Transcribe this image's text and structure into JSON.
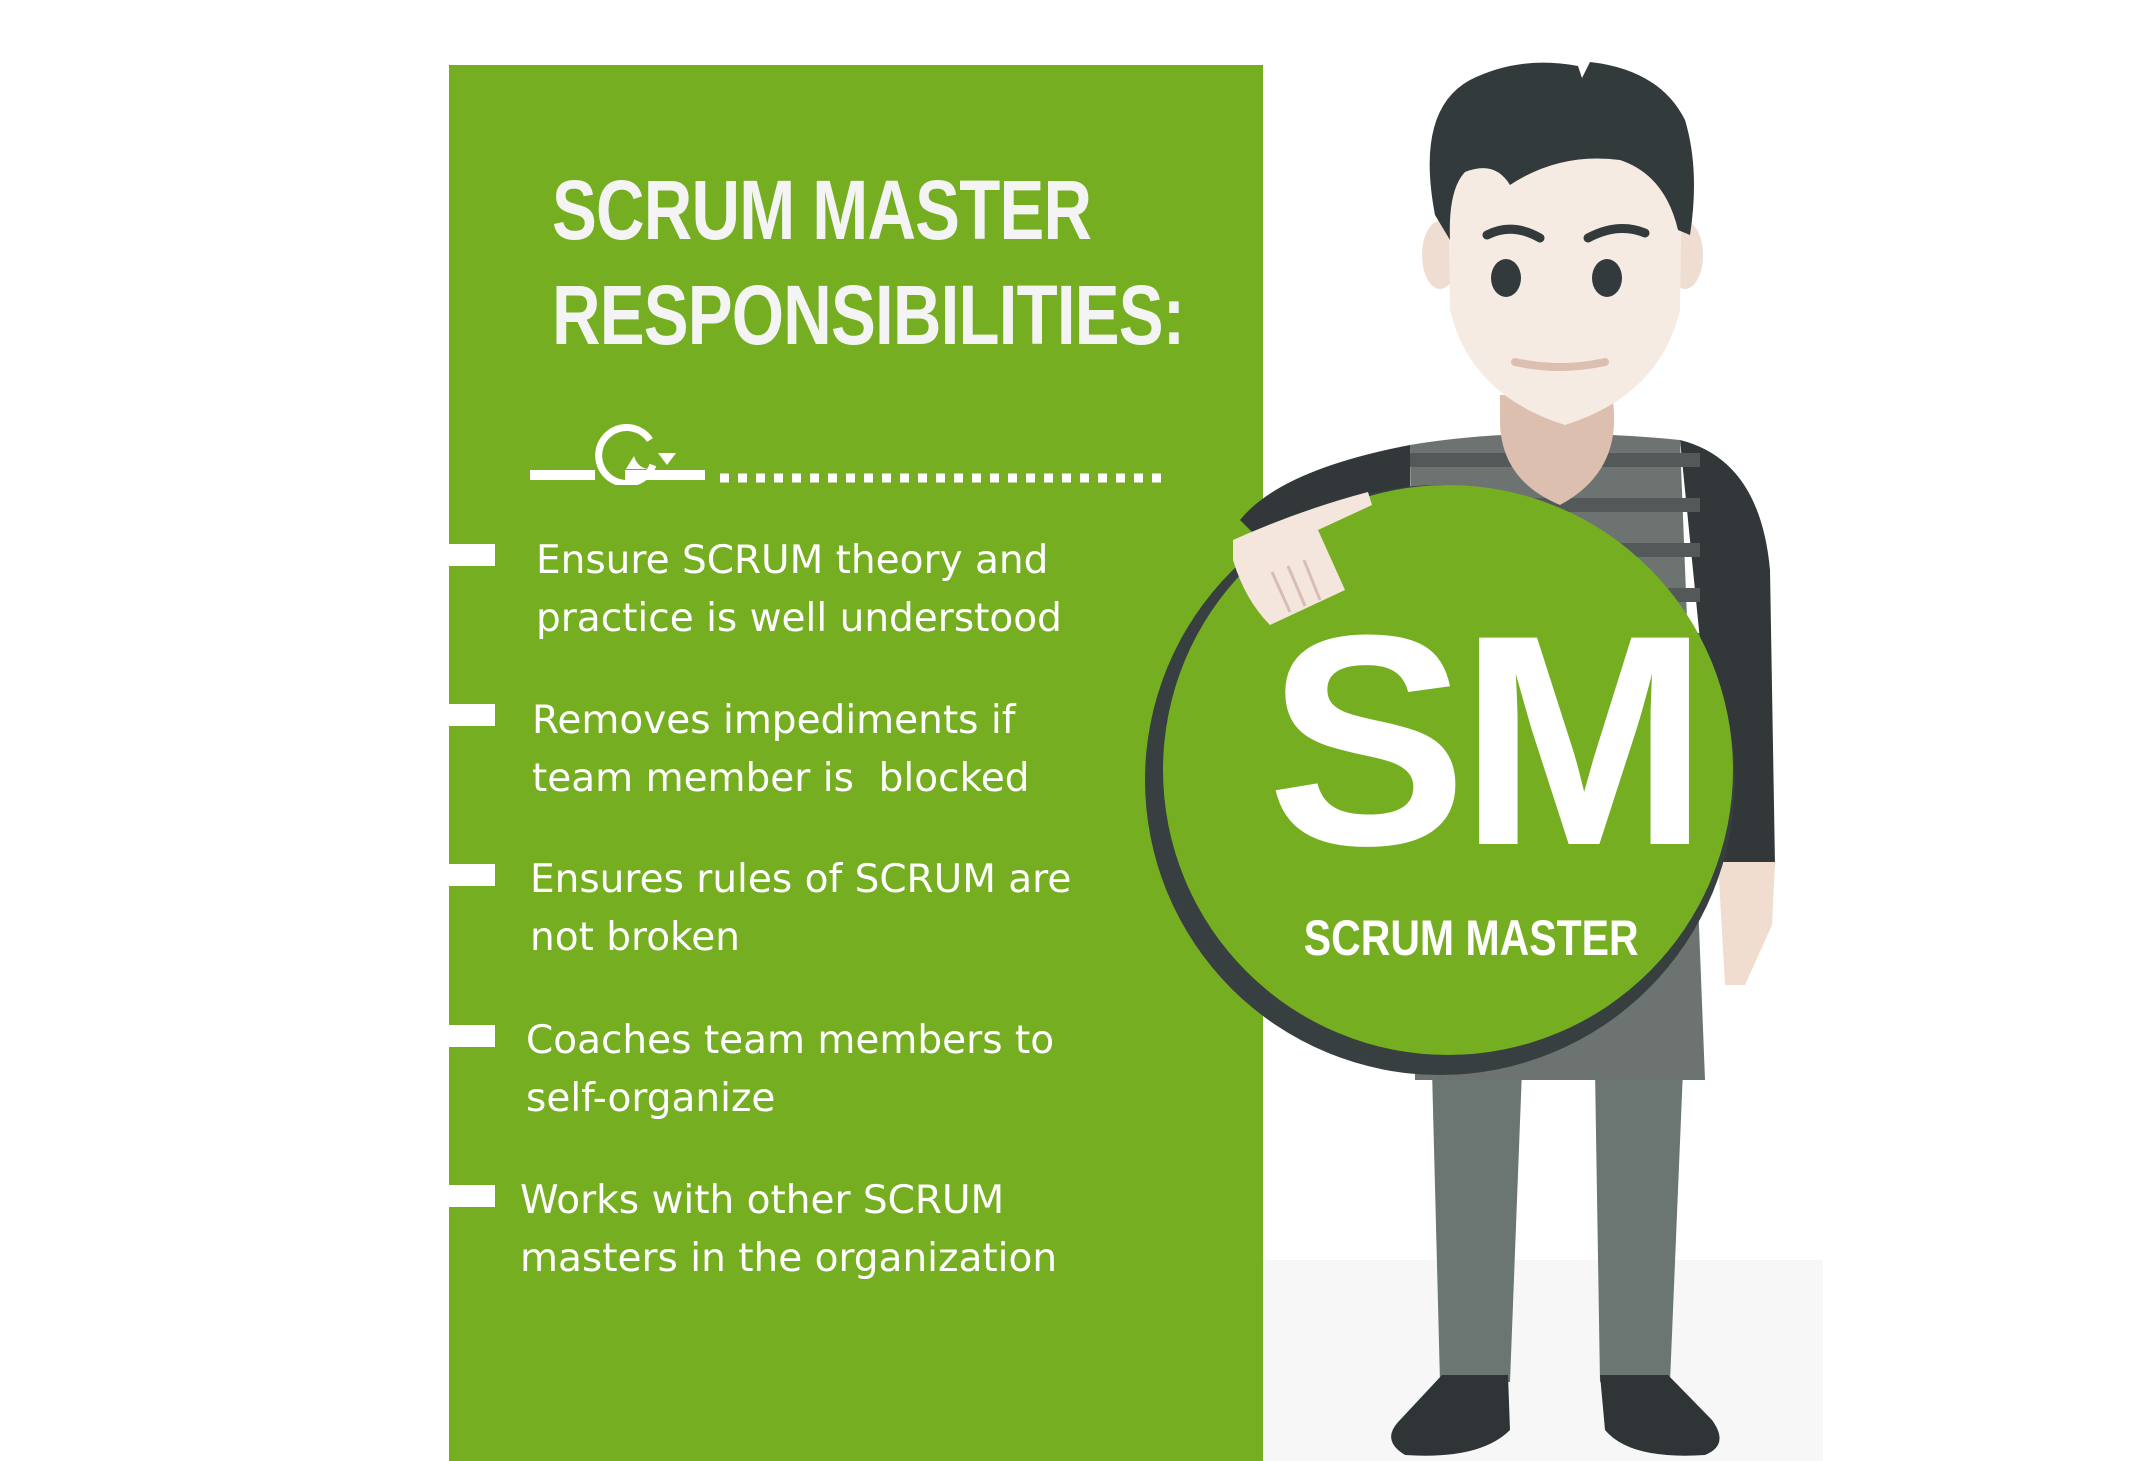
{
  "heading": {
    "line1": "SCRUM MASTER",
    "line2": "RESPONSIBILITIES:"
  },
  "items": [
    {
      "text": "Ensure SCRUM theory and\npractice is well understood"
    },
    {
      "text": "Removes impediments if\nteam member is  blocked"
    },
    {
      "text": "Ensures rules of SCRUM are\nnot broken"
    },
    {
      "text": "Coaches team members to\nself-organize"
    },
    {
      "text": "Works with other SCRUM\nmasters in the organization"
    }
  ],
  "badge": {
    "initials": "SM",
    "label": "SCRUM MASTER"
  },
  "icons": {
    "divider": "sprint-cycle-icon",
    "character": "scrum-master-character"
  },
  "colors": {
    "brand_green": "#76ae22",
    "hair": "#333a3c",
    "skin": "#f6ebe3",
    "shirt": "#6d7371",
    "pants": "#6b7572"
  }
}
